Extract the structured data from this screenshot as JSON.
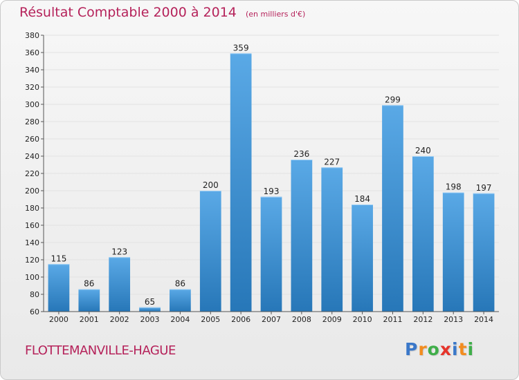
{
  "header": {
    "title": "Résultat Comptable 2000 à 2014",
    "subtitle": "(en milliers d'€)"
  },
  "footer": {
    "commune": "FLOTTEMANVILLE-HAGUE",
    "logo": [
      "P",
      "r",
      "o",
      "x",
      "i",
      "t",
      "i"
    ],
    "logo_colors": [
      "#3a78c9",
      "#f28c1f",
      "#3fae49",
      "#e6332a",
      "#3a78c9",
      "#f28c1f",
      "#3fae49"
    ]
  },
  "colors": {
    "bar_top": "#5aa9e6",
    "bar_bottom": "#2777b8",
    "grid": "#e2e2e2",
    "axis": "#555555",
    "accent": "#b5225a"
  },
  "chart_data": {
    "type": "bar",
    "title": "Résultat Comptable 2000 à 2014",
    "subtitle": "(en milliers d'€)",
    "categories": [
      "2000",
      "2001",
      "2002",
      "2003",
      "2004",
      "2005",
      "2006",
      "2007",
      "2008",
      "2009",
      "2010",
      "2011",
      "2012",
      "2013",
      "2014"
    ],
    "values": [
      115,
      86,
      123,
      65,
      86,
      200,
      359,
      193,
      236,
      227,
      184,
      299,
      240,
      198,
      197
    ],
    "ylim": [
      60,
      380
    ],
    "yticks": [
      60,
      80,
      100,
      120,
      140,
      160,
      180,
      200,
      220,
      240,
      260,
      280,
      300,
      320,
      340,
      360,
      380
    ],
    "grid": true,
    "data_labels": true
  }
}
